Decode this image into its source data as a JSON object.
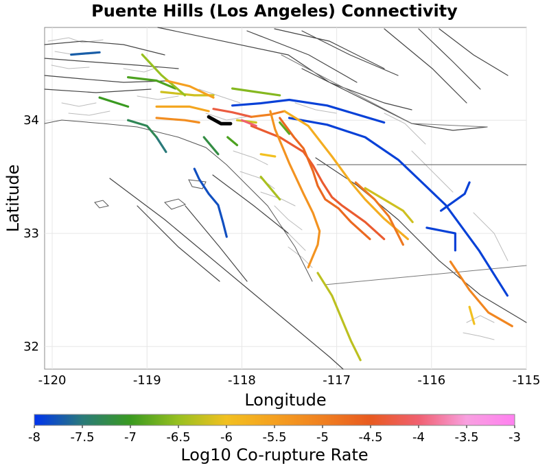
{
  "chart_data": {
    "type": "map",
    "title": "Puente Hills (Los Angeles) Connectivity",
    "xlabel": "Longitude",
    "ylabel": "Latitude",
    "xlim": [
      -120.08,
      -115
    ],
    "ylim": [
      31.8,
      34.82
    ],
    "x_ticks": [
      -120,
      -119,
      -118,
      -117,
      -116,
      -115
    ],
    "x_tick_labels": [
      "-120",
      "-119",
      "-118",
      "-117",
      "-116",
      "-115"
    ],
    "y_ticks": [
      32,
      33,
      34
    ],
    "y_tick_labels": [
      "32",
      "33",
      "34"
    ],
    "grid": true,
    "colorbar": {
      "label": "Log10 Co-rupture Rate",
      "range": [
        -8,
        -3
      ],
      "ticks": [
        -8,
        -7.5,
        -7,
        -6.5,
        -6,
        -5.5,
        -5,
        -4.5,
        -4,
        -3.5,
        -3
      ],
      "tick_labels": [
        "-8",
        "-7.5",
        "-7",
        "-6.5",
        "-6",
        "-5.5",
        "-5",
        "-4.5",
        "-4",
        "-3.5",
        "-3"
      ],
      "colors": [
        "#0033ee",
        "#2a7a7a",
        "#3a9a20",
        "#98c020",
        "#f2c020",
        "#f5a020",
        "#f08020",
        "#e85a20",
        "#f06070",
        "#f8a0e0",
        "#ff80f0"
      ]
    },
    "source_fault": {
      "name": "Puente Hills",
      "points": [
        [
          -118.35,
          34.03
        ],
        [
          -118.22,
          33.97
        ],
        [
          -118.12,
          33.97
        ]
      ]
    },
    "faults": [
      {
        "v": -7.9,
        "pts": [
          [
            -118.1,
            34.13
          ],
          [
            -117.8,
            34.15
          ],
          [
            -117.5,
            34.18
          ],
          [
            -117.1,
            34.13
          ],
          [
            -116.7,
            34.03
          ],
          [
            -116.5,
            33.98
          ]
        ]
      },
      {
        "v": -7.9,
        "pts": [
          [
            -117.5,
            34.02
          ],
          [
            -117.1,
            33.96
          ],
          [
            -116.7,
            33.85
          ],
          [
            -116.35,
            33.65
          ],
          [
            -116.1,
            33.45
          ],
          [
            -115.85,
            33.25
          ],
          [
            -115.5,
            32.85
          ],
          [
            -115.2,
            32.45
          ]
        ]
      },
      {
        "v": -7.8,
        "pts": [
          [
            -118.5,
            33.57
          ],
          [
            -118.45,
            33.48
          ],
          [
            -118.35,
            33.35
          ],
          [
            -118.25,
            33.25
          ],
          [
            -118.2,
            33.1
          ],
          [
            -118.16,
            32.97
          ]
        ]
      },
      {
        "v": -7.7,
        "pts": [
          [
            -119.8,
            34.58
          ],
          [
            -119.5,
            34.6
          ]
        ]
      },
      {
        "v": -7.5,
        "pts": [
          [
            -118.9,
            33.85
          ],
          [
            -118.8,
            33.72
          ]
        ]
      },
      {
        "v": -7.0,
        "pts": [
          [
            -119.5,
            34.2
          ],
          [
            -119.2,
            34.12
          ]
        ]
      },
      {
        "v": -7.3,
        "pts": [
          [
            -119.2,
            34.0
          ],
          [
            -119.0,
            33.95
          ],
          [
            -118.9,
            33.85
          ]
        ]
      },
      {
        "v": -6.9,
        "pts": [
          [
            -119.2,
            34.38
          ],
          [
            -118.9,
            34.35
          ],
          [
            -118.7,
            34.28
          ]
        ]
      },
      {
        "v": -6.2,
        "pts": [
          [
            -118.85,
            34.25
          ],
          [
            -118.5,
            34.22
          ],
          [
            -118.3,
            34.22
          ]
        ]
      },
      {
        "v": -5.6,
        "pts": [
          [
            -118.9,
            34.12
          ],
          [
            -118.55,
            34.12
          ],
          [
            -118.35,
            34.08
          ]
        ]
      },
      {
        "v": -5.2,
        "pts": [
          [
            -118.9,
            34.02
          ],
          [
            -118.6,
            34.0
          ],
          [
            -118.45,
            33.98
          ]
        ]
      },
      {
        "v": -4.3,
        "pts": [
          [
            -118.3,
            34.1
          ],
          [
            -118.1,
            34.07
          ],
          [
            -117.9,
            34.03
          ]
        ]
      },
      {
        "v": -5.0,
        "pts": [
          [
            -117.9,
            34.03
          ],
          [
            -117.7,
            34.05
          ],
          [
            -117.55,
            34.08
          ]
        ]
      },
      {
        "v": -5.7,
        "pts": [
          [
            -117.55,
            34.08
          ],
          [
            -117.3,
            33.95
          ],
          [
            -117.05,
            33.68
          ],
          [
            -116.85,
            33.45
          ],
          [
            -116.7,
            33.3
          ],
          [
            -116.5,
            33.13
          ],
          [
            -116.25,
            32.95
          ]
        ]
      },
      {
        "v": -4.4,
        "pts": [
          [
            -117.9,
            33.95
          ],
          [
            -117.6,
            33.85
          ],
          [
            -117.35,
            33.72
          ],
          [
            -117.25,
            33.6
          ],
          [
            -117.15,
            33.45
          ],
          [
            -117.05,
            33.32
          ],
          [
            -116.95,
            33.25
          ],
          [
            -116.7,
            33.1
          ],
          [
            -116.5,
            32.95
          ]
        ]
      },
      {
        "v": -4.7,
        "pts": [
          [
            -117.6,
            34.02
          ],
          [
            -117.45,
            33.85
          ],
          [
            -117.35,
            33.75
          ],
          [
            -117.25,
            33.55
          ],
          [
            -117.2,
            33.42
          ],
          [
            -117.12,
            33.3
          ],
          [
            -116.98,
            33.22
          ],
          [
            -116.85,
            33.1
          ],
          [
            -116.65,
            32.95
          ]
        ]
      },
      {
        "v": -5.3,
        "pts": [
          [
            -117.7,
            34.08
          ],
          [
            -117.65,
            33.92
          ],
          [
            -117.5,
            33.62
          ],
          [
            -117.35,
            33.35
          ],
          [
            -117.25,
            33.18
          ],
          [
            -117.18,
            33.02
          ],
          [
            -117.2,
            32.9
          ],
          [
            -117.3,
            32.7
          ]
        ]
      },
      {
        "v": -6.3,
        "pts": [
          [
            -117.2,
            32.65
          ],
          [
            -117.05,
            32.45
          ],
          [
            -116.95,
            32.25
          ],
          [
            -116.85,
            32.05
          ],
          [
            -116.75,
            31.88
          ]
        ]
      },
      {
        "v": -6.4,
        "pts": [
          [
            -117.8,
            33.5
          ],
          [
            -117.7,
            33.4
          ],
          [
            -117.6,
            33.3
          ]
        ]
      },
      {
        "v": -6.0,
        "pts": [
          [
            -117.8,
            33.7
          ],
          [
            -117.65,
            33.68
          ]
        ]
      },
      {
        "v": -4.9,
        "pts": [
          [
            -116.8,
            33.45
          ],
          [
            -116.6,
            33.3
          ],
          [
            -116.45,
            33.15
          ],
          [
            -116.3,
            32.9
          ]
        ]
      },
      {
        "v": -6.2,
        "pts": [
          [
            -116.7,
            33.4
          ],
          [
            -116.5,
            33.3
          ],
          [
            -116.3,
            33.2
          ],
          [
            -116.2,
            33.1
          ]
        ]
      },
      {
        "v": -5.1,
        "pts": [
          [
            -115.8,
            32.75
          ],
          [
            -115.6,
            32.5
          ],
          [
            -115.4,
            32.3
          ],
          [
            -115.15,
            32.18
          ]
        ]
      },
      {
        "v": -6.0,
        "pts": [
          [
            -115.6,
            32.35
          ],
          [
            -115.55,
            32.2
          ]
        ]
      },
      {
        "v": -7.9,
        "pts": [
          [
            -116.05,
            33.05
          ],
          [
            -115.75,
            33.0
          ],
          [
            -115.75,
            32.85
          ]
        ]
      },
      {
        "v": -7.9,
        "pts": [
          [
            -115.9,
            33.2
          ],
          [
            -115.65,
            33.35
          ],
          [
            -115.6,
            33.45
          ]
        ]
      },
      {
        "v": -6.5,
        "pts": [
          [
            -119.05,
            34.58
          ],
          [
            -118.85,
            34.4
          ],
          [
            -118.6,
            34.22
          ]
        ]
      },
      {
        "v": -5.5,
        "pts": [
          [
            -118.8,
            34.35
          ],
          [
            -118.55,
            34.3
          ],
          [
            -118.3,
            34.2
          ]
        ]
      },
      {
        "v": -6.6,
        "pts": [
          [
            -118.1,
            34.28
          ],
          [
            -117.85,
            34.25
          ],
          [
            -117.6,
            34.22
          ]
        ]
      },
      {
        "v": -7.2,
        "pts": [
          [
            -118.4,
            33.85
          ],
          [
            -118.25,
            33.7
          ]
        ]
      },
      {
        "v": -6.9,
        "pts": [
          [
            -118.15,
            33.85
          ],
          [
            -118.05,
            33.78
          ]
        ]
      },
      {
        "v": -6.2,
        "pts": [
          [
            -118.05,
            34.0
          ],
          [
            -117.85,
            33.98
          ]
        ]
      },
      {
        "v": -4.0,
        "pts": [
          [
            -118.0,
            34.0
          ],
          [
            -117.85,
            33.95
          ]
        ]
      },
      {
        "v": -6.8,
        "pts": [
          [
            -117.6,
            33.98
          ],
          [
            -117.5,
            33.88
          ]
        ]
      }
    ]
  }
}
